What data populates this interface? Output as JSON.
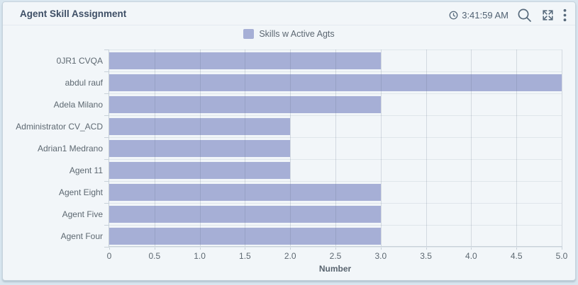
{
  "header": {
    "title": "Agent Skill Assignment",
    "time": "3:41:59 AM"
  },
  "icons": [
    "clock-icon",
    "search-icon",
    "expand-icon",
    "kebab-menu-icon"
  ],
  "legend": {
    "label": "Skills w Active Agts",
    "swatch_color": "#a6afd6"
  },
  "colors": {
    "bar": "#a6afd6",
    "card_background": "#f2f6f9",
    "page_background": "#d9e6ef",
    "title_text": "#3e4f66",
    "axis_text": "#5d6871"
  },
  "chart_data": {
    "type": "bar",
    "orientation": "horizontal",
    "title": "Agent Skill Assignment",
    "series_name": "Skills w Active Agts",
    "categories": [
      "0JR1 CVQA",
      "abdul rauf",
      "Adela Milano",
      "Administrator CV_ACD",
      "Adrian1 Medrano",
      "Agent 11",
      "Agent Eight",
      "Agent Five",
      "Agent Four"
    ],
    "values": [
      3,
      5,
      3,
      2,
      2,
      2,
      3,
      3,
      3
    ],
    "xlabel": "Number",
    "ylabel": "",
    "xlim": [
      0,
      5
    ],
    "xticks": [
      0,
      0.5,
      1,
      1.5,
      2,
      2.5,
      3,
      3.5,
      4,
      4.5,
      5
    ],
    "xtick_labels": [
      "0",
      "0.5",
      "1.0",
      "1.5",
      "2.0",
      "2.5",
      "3.0",
      "3.5",
      "4.0",
      "4.5",
      "5.0"
    ],
    "grid": true,
    "legend_position": "top",
    "bar_color": "#a6afd6"
  }
}
